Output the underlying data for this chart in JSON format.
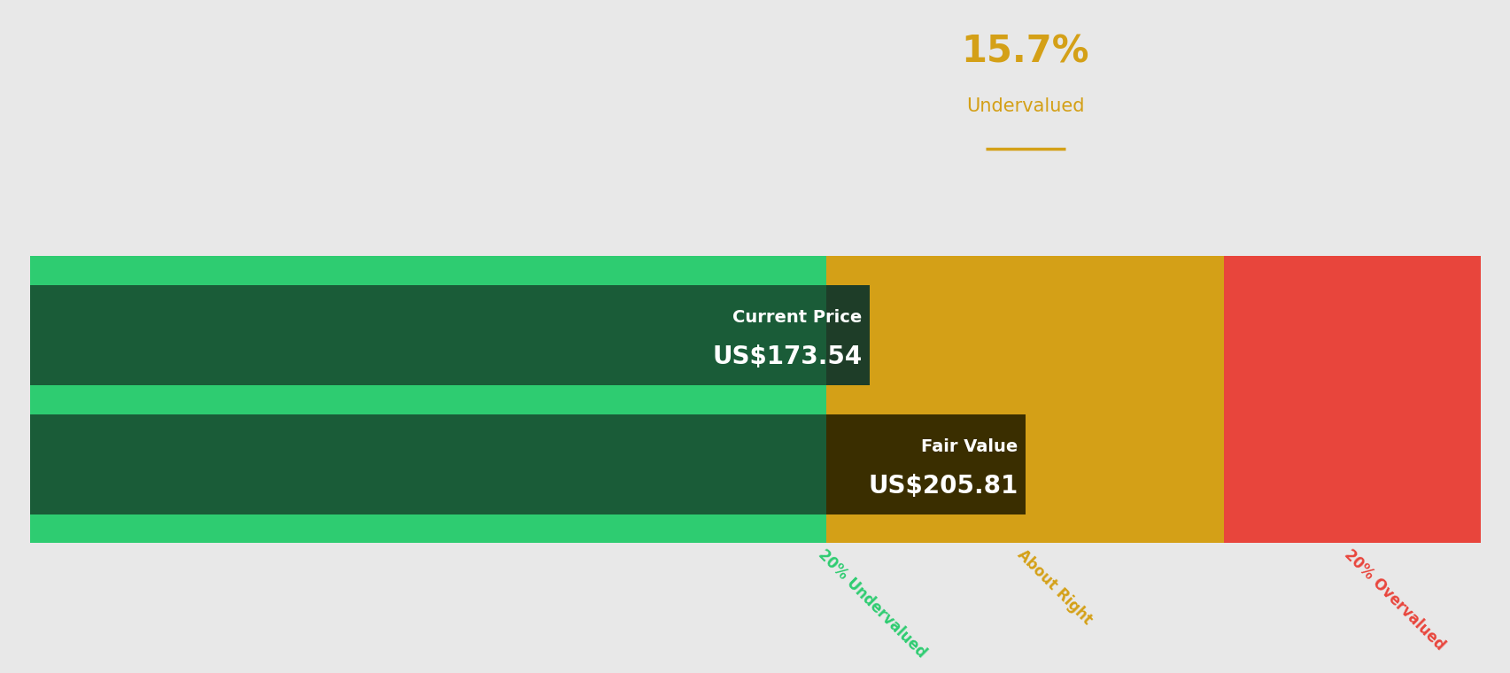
{
  "bg_color": "#e8e8e8",
  "title_pct": "15.7%",
  "title_label": "Undervalued",
  "title_color": "#d4a017",
  "underline_color": "#d4a017",
  "current_price": 173.54,
  "fair_value": 205.81,
  "range_max": 300,
  "color_green_light": "#2ecc71",
  "color_green_dark": "#1a5c38",
  "color_yellow": "#d4a017",
  "color_red": "#e8453c",
  "color_dark_overlay_current": "#1e3d28",
  "color_dark_overlay_fair": "#3a2e00",
  "label_undervalued": "20% Undervalued",
  "label_about_right": "About Right",
  "label_overvalued": "20% Overvalued",
  "label_undervalued_color": "#2ecc71",
  "label_about_right_color": "#d4a017",
  "label_overvalued_color": "#e8453c",
  "figsize": [
    17.06,
    7.6
  ],
  "dpi": 100
}
